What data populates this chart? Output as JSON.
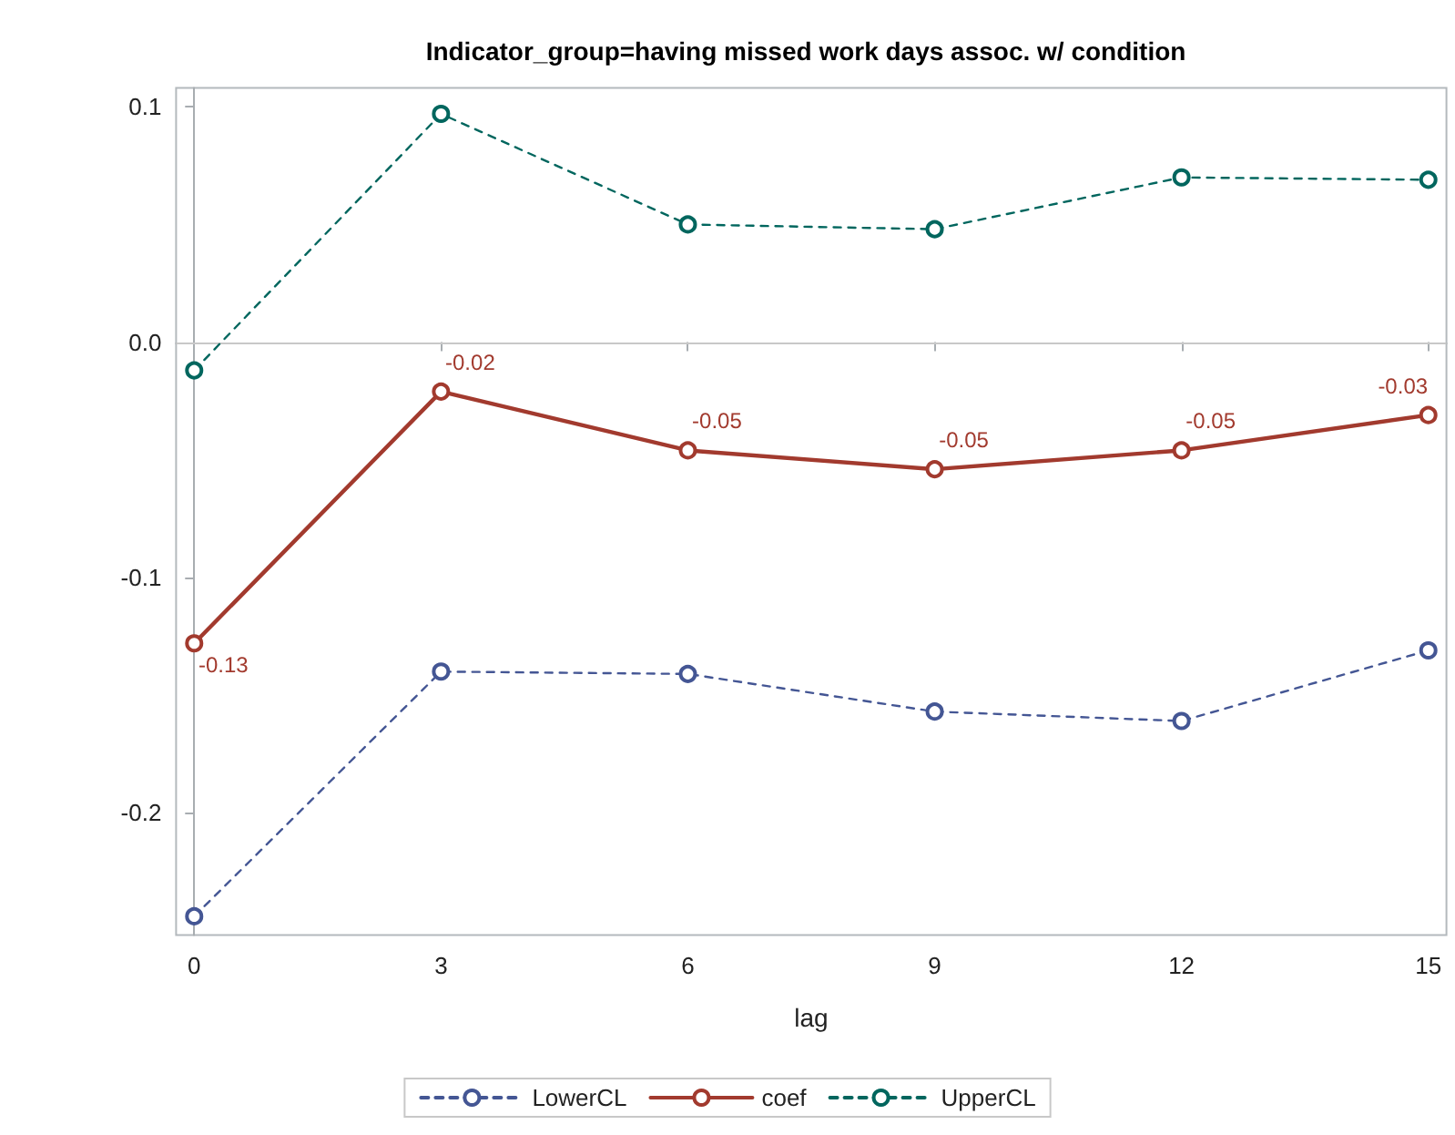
{
  "chart_data": {
    "type": "line",
    "title": "Indicator_group=having missed work days assoc. w/ condition",
    "xlabel": "lag",
    "x": [
      0,
      3,
      6,
      9,
      12,
      15
    ],
    "xlim": [
      -0.22,
      15.22
    ],
    "xticks": [
      0,
      3,
      6,
      9,
      12,
      15
    ],
    "ylim": [
      -0.252,
      0.108
    ],
    "yticks": [
      -0.2,
      -0.1,
      {
        "value": 0,
        "label": "0.0"
      },
      0.1
    ],
    "marker": "circle",
    "legend": "bottom",
    "ref_lines": [
      {
        "axis": "y",
        "value": 0,
        "color": "#c8c8c8"
      }
    ],
    "series": [
      {
        "name": "LowerCL",
        "color": "#445694",
        "line_style": "dashed",
        "values": [
          -0.244,
          -0.14,
          -0.141,
          -0.157,
          -0.161,
          -0.131
        ]
      },
      {
        "name": "coef",
        "color": "#a23a2e",
        "line_style": "solid",
        "values": [
          -0.128,
          -0.021,
          -0.046,
          -0.054,
          -0.046,
          -0.031
        ],
        "value_labels": [
          "-0.13",
          "-0.02",
          "-0.05",
          "-0.05",
          "-0.05",
          "-0.03"
        ]
      },
      {
        "name": "UpperCL",
        "color": "#01665e",
        "line_style": "dashed",
        "values": [
          -0.012,
          0.097,
          0.05,
          0.048,
          0.07,
          0.069
        ]
      }
    ]
  }
}
